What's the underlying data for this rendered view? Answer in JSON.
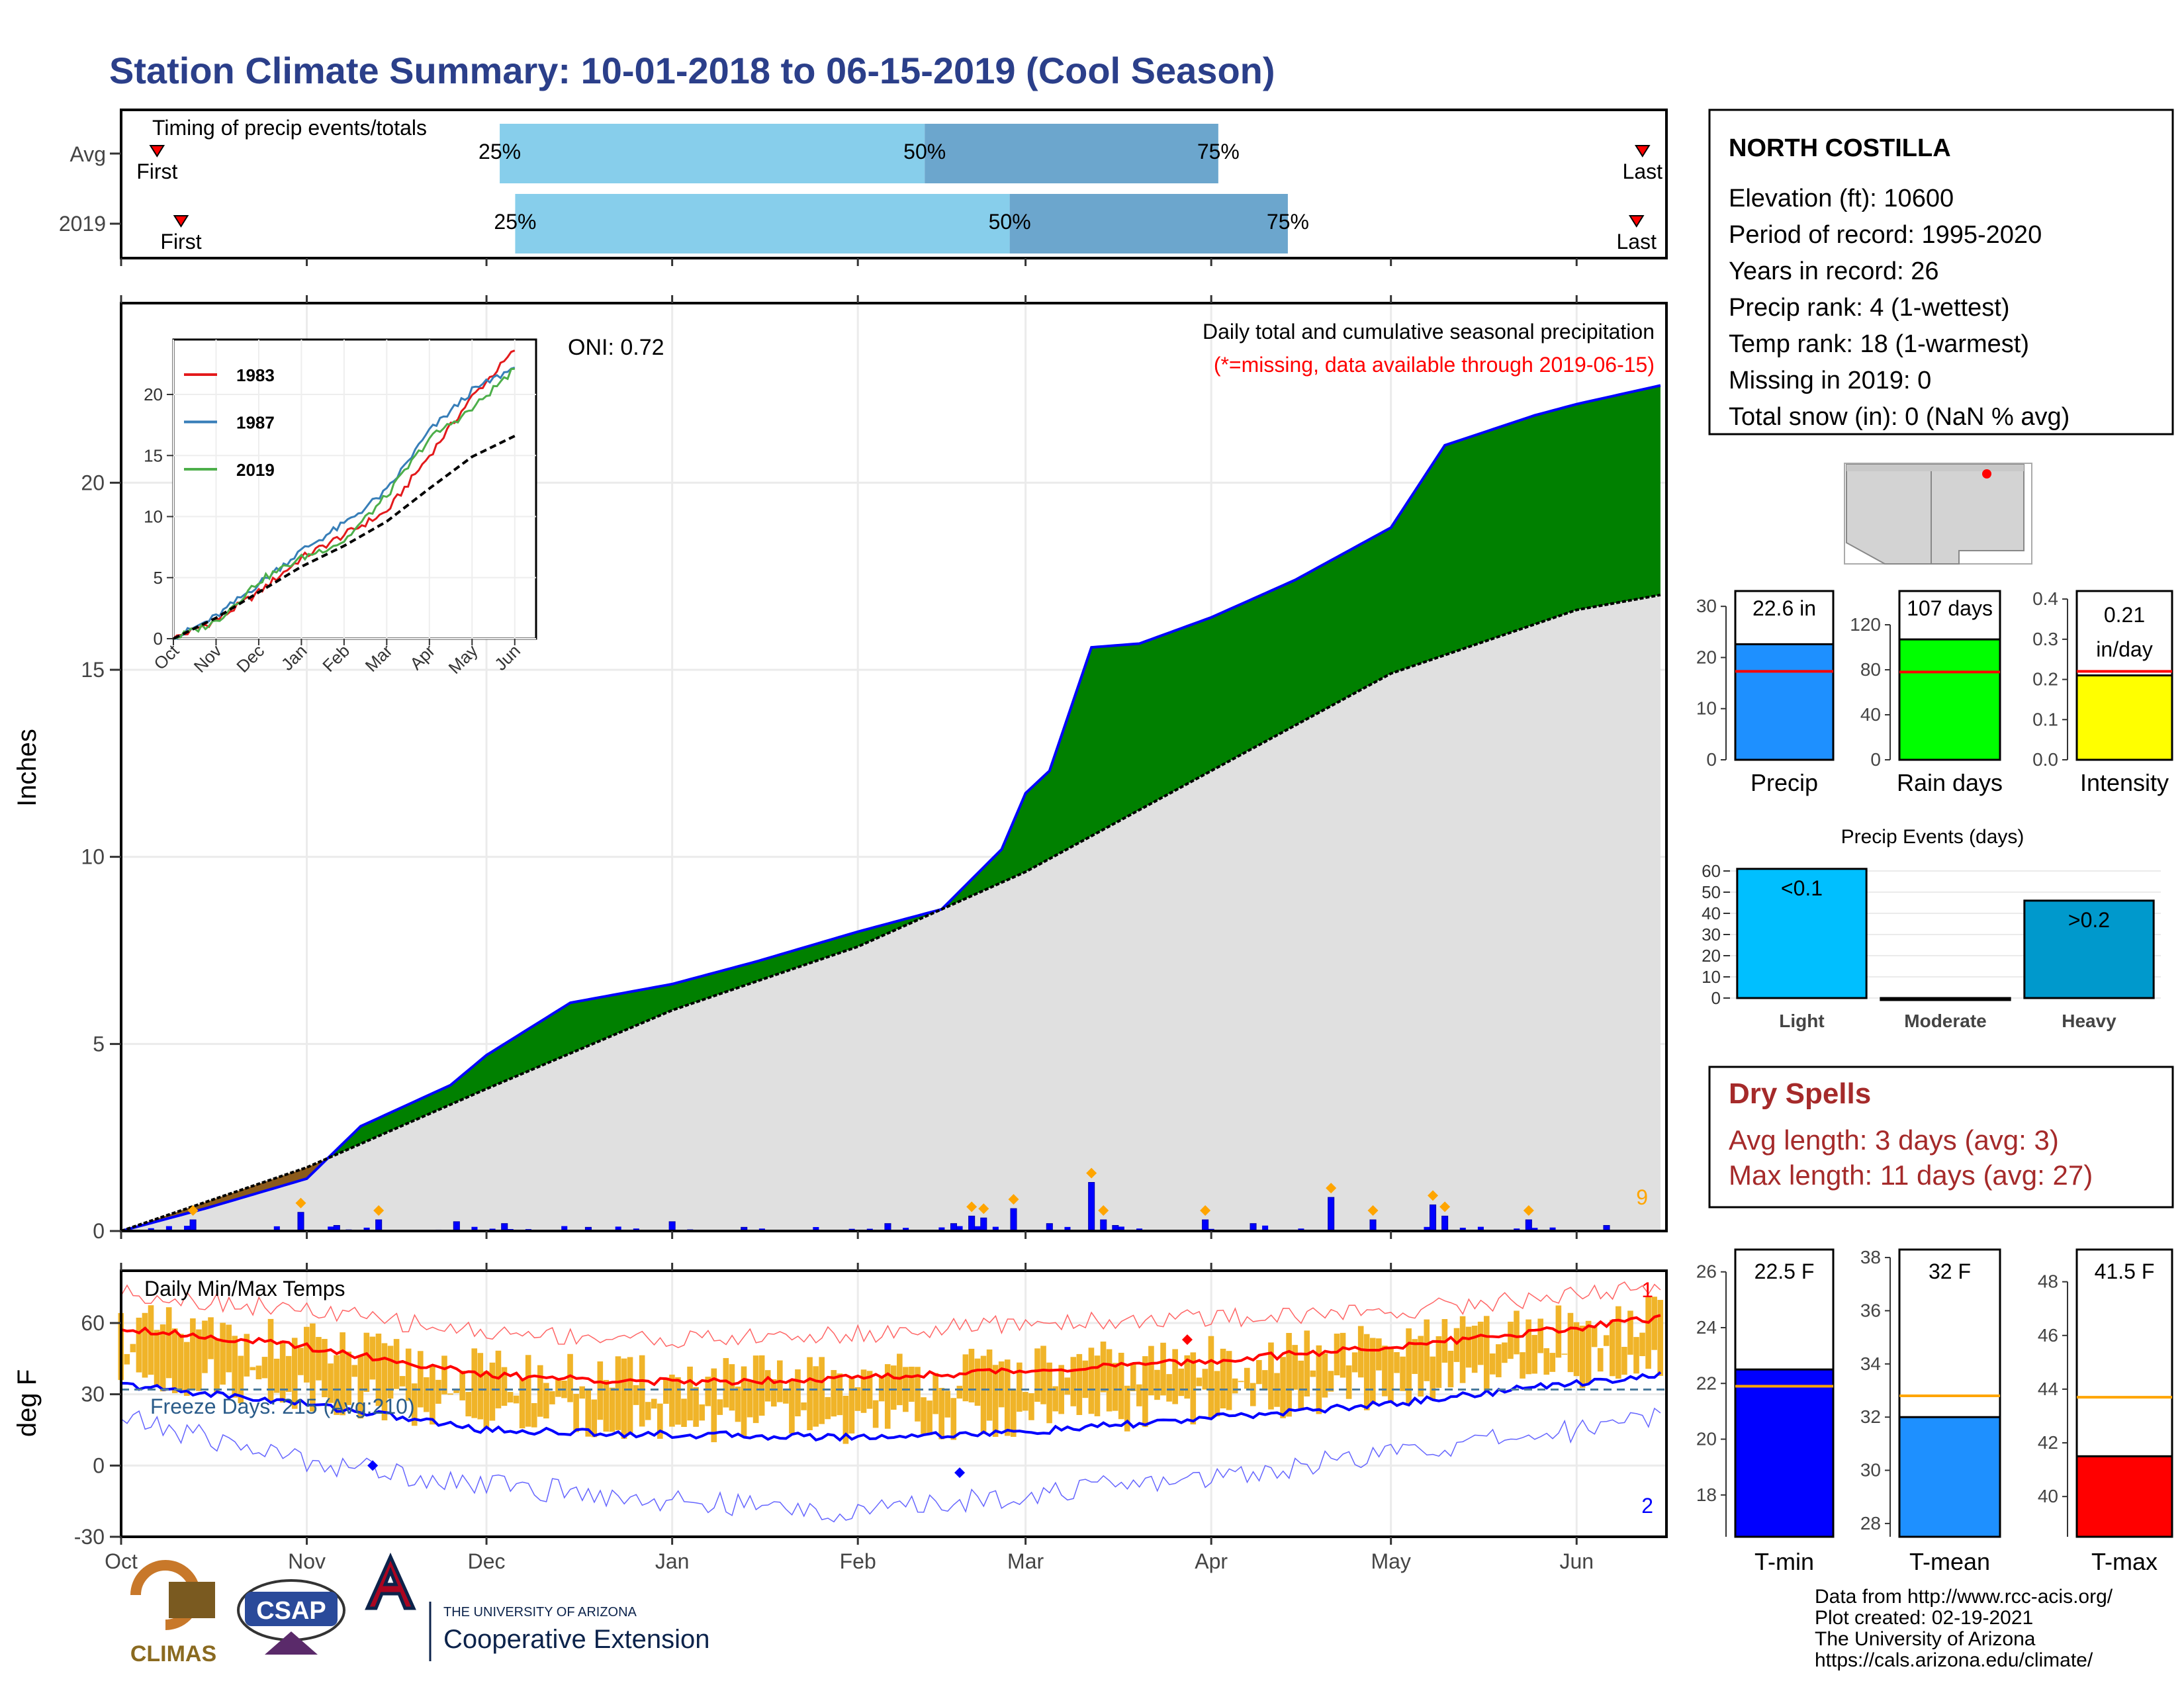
{
  "title": "Station Climate Summary: 10-01-2018 to 06-15-2019 (Cool Season)",
  "timing": {
    "title": "Timing of precip events/totals",
    "rows": [
      {
        "label": "Avg",
        "first_label": "First",
        "last_label": "Last",
        "first_date": "2018-10-07",
        "last_date": "2019-06-12",
        "p25": 0.245,
        "p50": 0.52,
        "p75": 0.71,
        "p25_label": "25%",
        "p50_label": "50%",
        "p75_label": "75%"
      },
      {
        "label": "2019",
        "first_label": "First",
        "last_label": "Last",
        "first_date": "2018-10-11",
        "last_date": "2019-06-11",
        "p25": 0.255,
        "p50": 0.575,
        "p75": 0.755,
        "p25_label": "25%",
        "p50_label": "50%",
        "p75_label": "75%"
      }
    ],
    "colors": {
      "first_half": "#87ceeb",
      "second_half": "#6ca6cd",
      "marker": "#ff0000"
    }
  },
  "precip_panel": {
    "ylabel": "Inches",
    "title_line1": "Daily total and cumulative seasonal precipitation",
    "title_line2": "(*=missing, data available through 2019-06-15)",
    "oni_label": "ONI: 0.72",
    "count_label": "9",
    "colors": {
      "above": "#008000",
      "below": "#8b5a1b",
      "avg_fill": "#e0e0e0",
      "obs_line": "#0000ff",
      "bars": "#0000ff",
      "diamonds": "#ffa500",
      "note": "#ff0000"
    }
  },
  "inset": {
    "legend": [
      "1983",
      "1987",
      "2019"
    ],
    "colors": [
      "#e31a1c",
      "#377eb8",
      "#4daf4a"
    ]
  },
  "temp_panel": {
    "ylabel": "deg F",
    "title": "Daily Min/Max Temps",
    "freeze_label": "Freeze Days: 215 (Avg:210)",
    "record_high_count": "1",
    "record_low_count": "2",
    "colors": {
      "bars": "#f0b429",
      "max_norm": "#ff0000",
      "min_norm": "#0000ff",
      "record": "#ff0000",
      "freeze": "#4a7a9c"
    }
  },
  "station": {
    "name": "NORTH COSTILLA",
    "lines": [
      "Elevation (ft): 10600",
      "Period of record: 1995-2020",
      "Years in record: 26",
      "Precip rank: 4 (1-wettest)",
      "Temp rank: 18 (1-warmest)",
      "Missing in 2019: 0",
      "Total snow (in): 0 (NaN % avg)"
    ]
  },
  "summary_bars": [
    {
      "label": "Precip",
      "value_label": "22.6 in",
      "value": 22.6,
      "avg": 17.3,
      "ylim": [
        0,
        33
      ],
      "ticks": [
        0,
        10,
        20,
        30
      ],
      "color": "#1e90ff"
    },
    {
      "label": "Rain days",
      "value_label": "107 days",
      "value": 107,
      "avg": 78,
      "ylim": [
        0,
        150
      ],
      "ticks": [
        0,
        40,
        80,
        120
      ],
      "color": "#00ff00"
    },
    {
      "label": "Intensity",
      "value_label": "0.21 in/day",
      "value": 0.21,
      "avg": 0.22,
      "ylim": [
        0,
        0.42
      ],
      "ticks": [
        0.0,
        0.1,
        0.2,
        0.3,
        0.4
      ],
      "color": "#ffff00"
    }
  ],
  "precip_events": {
    "title": "Precip Events (days)",
    "categories": [
      "Light",
      "Moderate",
      "Heavy"
    ],
    "values": [
      61,
      0,
      46
    ],
    "bar_labels": [
      "<0.1",
      "",
      ">0.2"
    ],
    "colors": [
      "#00bfff",
      "#1e90ff",
      "#0099cc"
    ],
    "ylim": [
      0,
      65
    ],
    "ticks": [
      0,
      10,
      20,
      30,
      40,
      50,
      60
    ]
  },
  "dry_spells": {
    "title": "Dry Spells",
    "line1": "Avg length: 3 days (avg: 3)",
    "line2": "Max length: 11 days (avg: 27)",
    "color": "#a52a2a"
  },
  "temp_bars": [
    {
      "label": "T-min",
      "value_label": "22.5 F",
      "value": 22.5,
      "avg": 21.9,
      "ylim": [
        16.5,
        26.8
      ],
      "ticks": [
        18,
        20,
        22,
        24,
        26
      ],
      "color": "#0000ff"
    },
    {
      "label": "T-mean",
      "value_label": "32 F",
      "value": 32.0,
      "avg": 32.8,
      "ylim": [
        27.5,
        38.3
      ],
      "ticks": [
        28,
        30,
        32,
        34,
        36,
        38
      ],
      "color": "#1e90ff"
    },
    {
      "label": "T-max",
      "value_label": "41.5 F",
      "value": 41.5,
      "avg": 43.7,
      "ylim": [
        38.5,
        49.2
      ],
      "ticks": [
        40,
        42,
        44,
        46,
        48
      ],
      "color": "#ff0000"
    }
  ],
  "footer": {
    "lines": [
      "Data from http://www.rcc-acis.org/",
      "Plot created: 02-19-2021",
      "The University of Arizona",
      "https://cals.arizona.edu/climate/"
    ],
    "logo1": "CLIMAS",
    "logo2": "CSAP",
    "logo3_small": "THE UNIVERSITY OF ARIZONA",
    "logo3_big": "Cooperative Extension"
  },
  "chart_data": [
    {
      "type": "area",
      "title": "Daily total and cumulative seasonal precipitation",
      "ylabel": "Inches",
      "x_tick_labels": [
        "Oct",
        "Nov",
        "Dec",
        "Jan",
        "Feb",
        "Mar",
        "Apr",
        "May",
        "Jun"
      ],
      "ylim": [
        0,
        24.8
      ],
      "yticks": [
        0,
        5,
        10,
        15,
        20
      ],
      "series": [
        {
          "name": "2019",
          "x": [
            "2018-10-01",
            "2018-10-15",
            "2018-11-01",
            "2018-11-10",
            "2018-11-25",
            "2018-12-01",
            "2018-12-15",
            "2019-01-01",
            "2019-01-15",
            "2019-02-01",
            "2019-02-15",
            "2019-02-25",
            "2019-03-01",
            "2019-03-05",
            "2019-03-12",
            "2019-03-20",
            "2019-04-01",
            "2019-04-15",
            "2019-05-01",
            "2019-05-10",
            "2019-05-25",
            "2019-06-01",
            "2019-06-15"
          ],
          "values": [
            0,
            0.6,
            1.4,
            2.8,
            3.9,
            4.7,
            6.1,
            6.6,
            7.2,
            8.0,
            8.6,
            10.2,
            11.7,
            12.3,
            15.6,
            15.7,
            16.4,
            17.4,
            18.8,
            21.0,
            21.8,
            22.1,
            22.6
          ]
        },
        {
          "name": "Avg",
          "x": [
            "2018-10-01",
            "2018-11-01",
            "2018-12-01",
            "2019-01-01",
            "2019-02-01",
            "2019-03-01",
            "2019-04-01",
            "2019-05-01",
            "2019-06-01",
            "2019-06-15"
          ],
          "values": [
            0,
            1.7,
            3.8,
            5.9,
            7.6,
            9.6,
            12.3,
            14.9,
            16.6,
            17.0
          ]
        }
      ],
      "daily_bars": {
        "x": [
          "2018-10-13",
          "2018-10-31",
          "2018-11-06",
          "2018-11-13",
          "2018-11-26",
          "2018-12-04",
          "2018-12-18",
          "2019-01-01",
          "2019-01-13",
          "2019-02-06",
          "2019-02-17",
          "2019-02-20",
          "2019-02-22",
          "2019-02-27",
          "2019-03-05",
          "2019-03-12",
          "2019-03-14",
          "2019-03-16",
          "2019-03-31",
          "2019-04-08",
          "2019-04-21",
          "2019-04-28",
          "2019-05-08",
          "2019-05-10",
          "2019-05-24",
          "2019-06-06"
        ],
        "values": [
          0.3,
          0.5,
          0.15,
          0.3,
          0.25,
          0.2,
          0.1,
          0.25,
          0.1,
          0.2,
          0.2,
          0.4,
          0.35,
          0.6,
          0.2,
          1.3,
          0.3,
          0.15,
          0.3,
          0.2,
          0.9,
          0.3,
          0.7,
          0.4,
          0.3,
          0.15
        ]
      }
    },
    {
      "type": "line",
      "title": "",
      "x_tick_labels": [
        "Oct",
        "Nov",
        "Dec",
        "Jan",
        "Feb",
        "Mar",
        "Apr",
        "May",
        "Jun"
      ],
      "ylim": [
        0,
        24.5
      ],
      "yticks": [
        0,
        5,
        10,
        15,
        20
      ],
      "series": [
        {
          "name": "1983",
          "values": [
            0,
            1.5,
            3.8,
            6.6,
            8.5,
            10.4,
            15.0,
            19.8,
            23.6
          ]
        },
        {
          "name": "1987",
          "values": [
            0,
            1.8,
            4.5,
            7.2,
            9.4,
            12.1,
            17.0,
            20.3,
            22.2
          ]
        },
        {
          "name": "2019",
          "values": [
            0,
            1.4,
            4.7,
            6.6,
            8.0,
            11.7,
            16.4,
            18.8,
            22.1
          ]
        },
        {
          "name": "Avg",
          "values": [
            0,
            1.7,
            3.8,
            5.9,
            7.6,
            9.6,
            12.3,
            14.9,
            16.6
          ]
        }
      ]
    },
    {
      "type": "bar",
      "title": "Daily Min/Max Temps",
      "ylabel": "deg F",
      "x_tick_labels": [
        "Oct",
        "Nov",
        "Dec",
        "Jan",
        "Feb",
        "Mar",
        "Apr",
        "May",
        "Jun"
      ],
      "ylim": [
        -30,
        82
      ],
      "yticks": [
        -30,
        0,
        30,
        60
      ],
      "freeze_threshold": 32,
      "series": [
        {
          "name": "Max normal",
          "x": [
            "2018-10-01",
            "2018-11-01",
            "2018-12-01",
            "2019-01-01",
            "2019-02-01",
            "2019-03-01",
            "2019-04-01",
            "2019-05-01",
            "2019-06-01",
            "2019-06-15"
          ],
          "values": [
            58,
            50,
            38,
            35,
            37,
            40,
            44,
            50,
            58,
            62
          ]
        },
        {
          "name": "Min normal",
          "x": [
            "2018-10-01",
            "2018-11-01",
            "2018-12-01",
            "2019-01-01",
            "2019-02-01",
            "2019-03-01",
            "2019-04-01",
            "2019-05-01",
            "2019-06-01",
            "2019-06-15"
          ],
          "values": [
            34,
            26,
            15,
            13,
            12,
            14,
            20,
            26,
            35,
            38
          ]
        },
        {
          "name": "Record high",
          "x": [
            "2018-10-01",
            "2018-11-01",
            "2018-12-01",
            "2019-01-01",
            "2019-02-01",
            "2019-03-01",
            "2019-04-01",
            "2019-05-01",
            "2019-06-01",
            "2019-06-15"
          ],
          "values": [
            73,
            65,
            56,
            53,
            55,
            60,
            62,
            65,
            72,
            75
          ]
        },
        {
          "name": "Record low",
          "x": [
            "2018-10-01",
            "2018-11-01",
            "2018-12-01",
            "2019-01-01",
            "2019-02-01",
            "2019-03-01",
            "2019-04-01",
            "2019-05-01",
            "2019-06-01",
            "2019-06-15"
          ],
          "values": [
            20,
            2,
            -8,
            -15,
            -20,
            -12,
            -5,
            5,
            15,
            22
          ]
        }
      ]
    }
  ]
}
